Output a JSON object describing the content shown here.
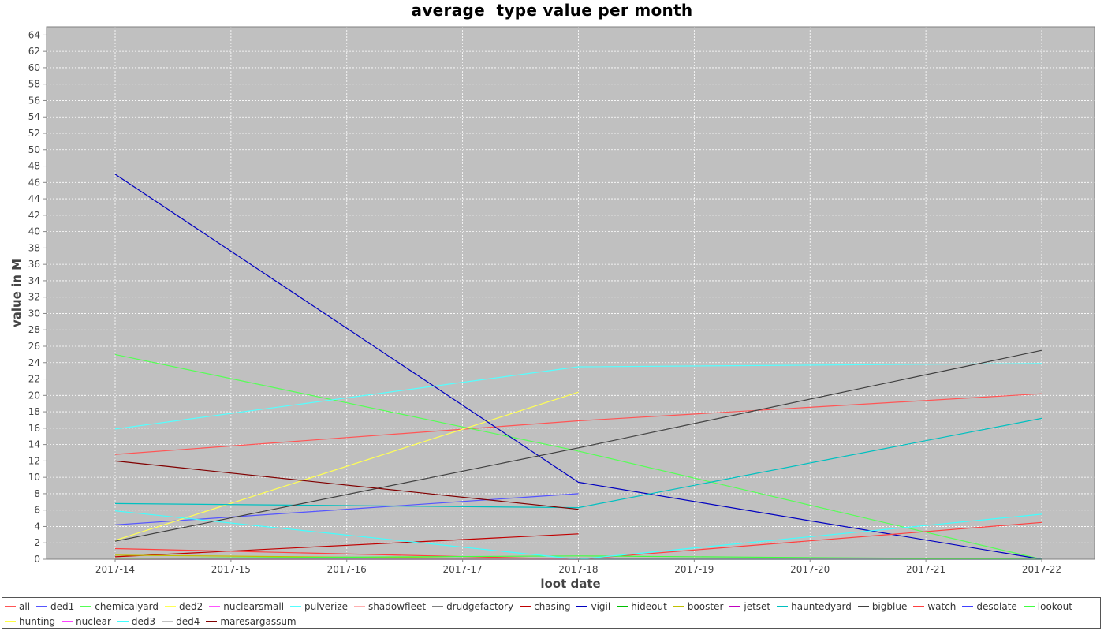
{
  "chart_data": {
    "type": "line",
    "title": "average  type value per month",
    "xlabel": "loot date",
    "ylabel": "value in M",
    "x": [
      "2017-14",
      "2017-15",
      "2017-16",
      "2017-17",
      "2017-18",
      "2017-19",
      "2017-20",
      "2017-21",
      "2017-22"
    ],
    "ylim": [
      0,
      65
    ],
    "yticks": [
      0,
      2,
      4,
      6,
      8,
      10,
      12,
      14,
      16,
      18,
      20,
      22,
      24,
      26,
      28,
      30,
      32,
      34,
      36,
      38,
      40,
      42,
      44,
      46,
      48,
      50,
      52,
      54,
      56,
      58,
      60,
      62,
      64
    ],
    "grid": true,
    "legend_position": "bottom",
    "background_color": "#c0c0c0",
    "series": [
      {
        "name": "all",
        "color": "#ff5555",
        "points": [
          [
            "2017-14",
            12.8
          ],
          [
            "2017-18",
            16.9
          ],
          [
            "2017-22",
            20.2
          ]
        ]
      },
      {
        "name": "ded1",
        "color": "#5555ff",
        "points": [
          [
            "2017-14",
            4.2
          ],
          [
            "2017-18",
            8.0
          ]
        ]
      },
      {
        "name": "chemicalyard",
        "color": "#55ff55",
        "points": [
          [
            "2017-14",
            25.0
          ],
          [
            "2017-18",
            13.2
          ],
          [
            "2017-22",
            0.0
          ]
        ]
      },
      {
        "name": "ded2",
        "color": "#ffff55",
        "points": [
          [
            "2017-14",
            2.3
          ],
          [
            "2017-18",
            20.4
          ]
        ]
      },
      {
        "name": "nuclearsmall",
        "color": "#ff55ff",
        "points": [
          [
            "2017-14",
            0.1
          ],
          [
            "2017-18",
            0.0
          ]
        ]
      },
      {
        "name": "pulverize",
        "color": "#55ffff",
        "points": [
          [
            "2017-14",
            15.9
          ],
          [
            "2017-18",
            23.5
          ],
          [
            "2017-22",
            23.9
          ]
        ]
      },
      {
        "name": "shadowfleet",
        "color": "#ffafaf",
        "points": [
          [
            "2017-14",
            0.0
          ],
          [
            "2017-22",
            0.0
          ]
        ]
      },
      {
        "name": "drudgefactory",
        "color": "#808080",
        "points": [
          [
            "2017-14",
            0.1
          ],
          [
            "2017-18",
            0.0
          ]
        ]
      },
      {
        "name": "chasing",
        "color": "#c00000",
        "points": [
          [
            "2017-14",
            0.3
          ],
          [
            "2017-18",
            3.1
          ]
        ]
      },
      {
        "name": "vigil",
        "color": "#0000c0",
        "points": [
          [
            "2017-14",
            47.0
          ],
          [
            "2017-18",
            9.4
          ],
          [
            "2017-22",
            0.0
          ]
        ]
      },
      {
        "name": "hideout",
        "color": "#00c000",
        "points": [
          [
            "2017-14",
            0.0
          ],
          [
            "2017-22",
            0.0
          ]
        ]
      },
      {
        "name": "booster",
        "color": "#c0c000",
        "points": [
          [
            "2017-14",
            0.5
          ],
          [
            "2017-18",
            0.0
          ]
        ]
      },
      {
        "name": "jetset",
        "color": "#c000c0",
        "points": [
          [
            "2017-14",
            0.0
          ],
          [
            "2017-18",
            0.0
          ]
        ]
      },
      {
        "name": "hauntedyard",
        "color": "#00c0c0",
        "points": [
          [
            "2017-14",
            6.8
          ],
          [
            "2017-18",
            6.3
          ],
          [
            "2017-22",
            17.2
          ]
        ]
      },
      {
        "name": "bigblue",
        "color": "#404040",
        "points": [
          [
            "2017-14",
            2.2
          ],
          [
            "2017-18",
            13.6
          ],
          [
            "2017-22",
            25.5
          ]
        ]
      },
      {
        "name": "watch",
        "color": "#ff4040",
        "points": [
          [
            "2017-14",
            1.3
          ],
          [
            "2017-18",
            0.0
          ],
          [
            "2017-22",
            4.5
          ]
        ]
      },
      {
        "name": "desolate",
        "color": "#4040ff",
        "points": [
          [
            "2017-14",
            0.0
          ],
          [
            "2017-22",
            0.0
          ]
        ]
      },
      {
        "name": "lookout",
        "color": "#40ff40",
        "points": [
          [
            "2017-14",
            0.1
          ],
          [
            "2017-18",
            0.4
          ],
          [
            "2017-22",
            0.0
          ]
        ]
      },
      {
        "name": "hunting",
        "color": "#ffff40",
        "points": [
          [
            "2017-14",
            0.0
          ],
          [
            "2017-18",
            0.0
          ]
        ]
      },
      {
        "name": "nuclear",
        "color": "#ff40ff",
        "points": [
          [
            "2017-14",
            0.0
          ],
          [
            "2017-18",
            0.0
          ]
        ]
      },
      {
        "name": "ded3",
        "color": "#40ffff",
        "points": [
          [
            "2017-14",
            5.9
          ],
          [
            "2017-18",
            0.0
          ],
          [
            "2017-22",
            5.5
          ]
        ]
      },
      {
        "name": "ded4",
        "color": "#c0c0c0",
        "points": [
          [
            "2017-14",
            0.0
          ],
          [
            "2017-18",
            0.0
          ]
        ]
      },
      {
        "name": "maresargassum",
        "color": "#800000",
        "points": [
          [
            "2017-14",
            12.0
          ],
          [
            "2017-18",
            6.1
          ]
        ]
      }
    ]
  }
}
